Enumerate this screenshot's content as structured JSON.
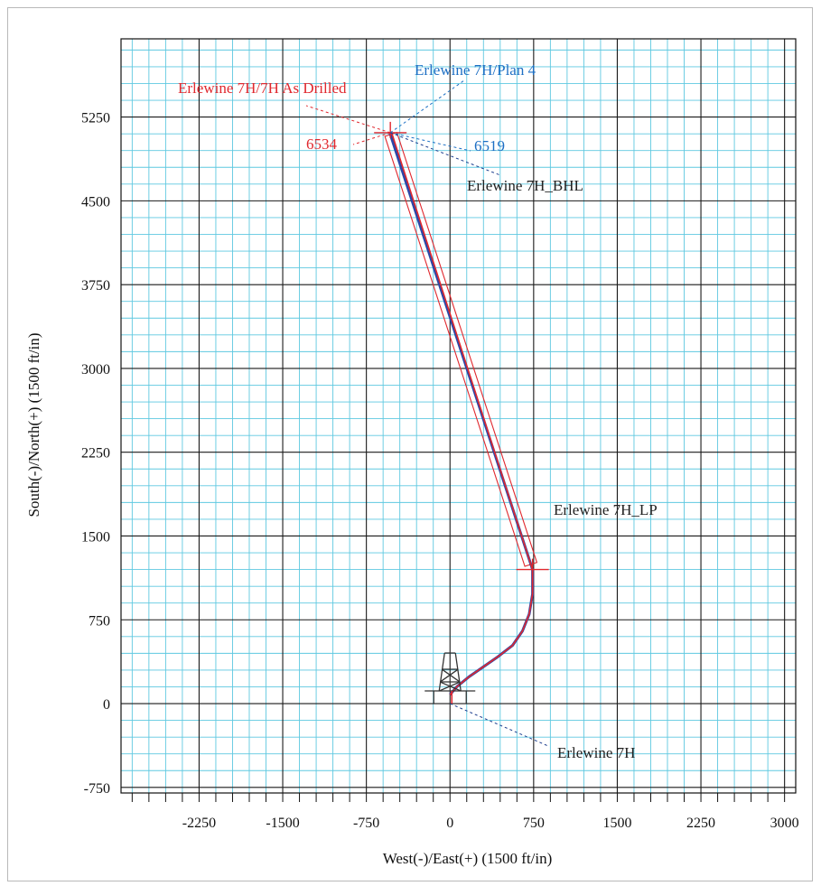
{
  "chart_data": {
    "type": "line",
    "xlabel": "West(-)/East(+) (1500 ft/in)",
    "ylabel": "South(-)/North(+) (1500 ft/in)",
    "xlim": [
      -2950,
      3100
    ],
    "ylim": [
      -800,
      5950
    ],
    "xticks": [
      -2250,
      -1500,
      -750,
      0,
      750,
      1500,
      2250,
      3000
    ],
    "yticks": [
      -750,
      0,
      750,
      1500,
      2250,
      3000,
      3750,
      4500,
      5250
    ],
    "grid": true,
    "grid_major_step": 750,
    "grid_minor_step": 150,
    "series": [
      {
        "name": "Erlewine 7H/Plan 4",
        "color": "#2b47a8",
        "x": [
          0,
          60,
          170,
          300,
          430,
          560,
          650,
          710,
          740,
          740,
          -540
        ],
        "y": [
          80,
          150,
          240,
          330,
          420,
          520,
          650,
          800,
          980,
          1200,
          5110
        ]
      },
      {
        "name": "Erlewine 7H/7H As Drilled",
        "color": "#e0282e",
        "x": [
          0,
          60,
          170,
          300,
          430,
          560,
          650,
          710,
          740,
          740,
          -525
        ],
        "y": [
          80,
          150,
          240,
          330,
          420,
          520,
          650,
          800,
          980,
          1200,
          5115
        ]
      }
    ],
    "annotations": [
      {
        "text": "Erlewine 7H/7H As Drilled",
        "color": "#e0282e"
      },
      {
        "text": "Erlewine 7H/Plan 4",
        "color": "#1d6fc4"
      },
      {
        "text": "6534",
        "color": "#e0282e"
      },
      {
        "text": "6519",
        "color": "#1d6fc4"
      },
      {
        "text": "Erlewine 7H_BHL",
        "color": "#222222"
      },
      {
        "text": "Erlewine 7H_LP",
        "color": "#222222"
      },
      {
        "text": "Erlewine 7H",
        "color": "#222222"
      }
    ],
    "colors": {
      "grid_minor": "#5ec8e0",
      "grid_major": "#1a1a1a",
      "drilled": "#e0282e",
      "plan": "#2b47a8",
      "target_envelope": "#e0282e"
    }
  }
}
